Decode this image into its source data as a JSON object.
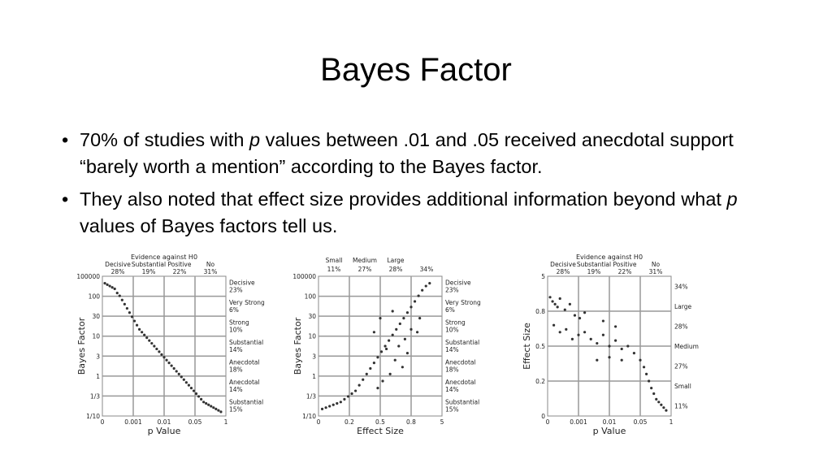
{
  "slide": {
    "title": "Bayes Factor",
    "bullets": [
      {
        "before": "70% of studies with ",
        "italic": "p",
        "after": " values between .01 and .05 received anecdotal support “barely worth a mention” according to the Bayes factor."
      },
      {
        "before": "They also noted that effect size provides additional information beyond what ",
        "italic": "p",
        "after": " values of Bayes factors tell us."
      }
    ]
  },
  "chart_data": [
    {
      "type": "scatter",
      "xlabel": "p Value",
      "ylabel": "Bayes Factor",
      "top_header": "Evidence against H0",
      "top_categories": [
        {
          "name": "Decisive",
          "pct": "28%"
        },
        {
          "name": "Substantial",
          "pct": "19%"
        },
        {
          "name": "Positive",
          "pct": "22%"
        },
        {
          "name": "No",
          "pct": "31%"
        }
      ],
      "x_ticks": [
        "0",
        "0.001",
        "0.01",
        "0.05",
        "1"
      ],
      "y_ticks": [
        "100000",
        "100",
        "30",
        "10",
        "3",
        "1",
        "1/3",
        "1/10"
      ],
      "right_labels": [
        {
          "name": "Decisive",
          "pct": "23%"
        },
        {
          "name": "Very Strong",
          "pct": "6%"
        },
        {
          "name": "Strong",
          "pct": "10%"
        },
        {
          "name": "Substantial",
          "pct": "14%"
        },
        {
          "name": "Anecdotal",
          "pct": "18%"
        },
        {
          "name": "Anecdotal",
          "pct": "14%"
        },
        {
          "name": "Substantial",
          "pct": "15%"
        }
      ],
      "points_desc": "monotone decreasing band",
      "points": [
        [
          0.02,
          0.95
        ],
        [
          0.04,
          0.94
        ],
        [
          0.06,
          0.93
        ],
        [
          0.08,
          0.92
        ],
        [
          0.1,
          0.91
        ],
        [
          0.12,
          0.88
        ],
        [
          0.14,
          0.86
        ],
        [
          0.16,
          0.83
        ],
        [
          0.18,
          0.8
        ],
        [
          0.2,
          0.77
        ],
        [
          0.22,
          0.74
        ],
        [
          0.24,
          0.71
        ],
        [
          0.26,
          0.68
        ],
        [
          0.28,
          0.65
        ],
        [
          0.3,
          0.62
        ],
        [
          0.32,
          0.6
        ],
        [
          0.34,
          0.58
        ],
        [
          0.36,
          0.56
        ],
        [
          0.38,
          0.54
        ],
        [
          0.4,
          0.52
        ],
        [
          0.42,
          0.5
        ],
        [
          0.44,
          0.48
        ],
        [
          0.46,
          0.46
        ],
        [
          0.48,
          0.44
        ],
        [
          0.5,
          0.42
        ],
        [
          0.52,
          0.4
        ],
        [
          0.54,
          0.38
        ],
        [
          0.56,
          0.36
        ],
        [
          0.58,
          0.34
        ],
        [
          0.6,
          0.32
        ],
        [
          0.62,
          0.3
        ],
        [
          0.64,
          0.28
        ],
        [
          0.66,
          0.26
        ],
        [
          0.68,
          0.24
        ],
        [
          0.7,
          0.22
        ],
        [
          0.72,
          0.2
        ],
        [
          0.74,
          0.18
        ],
        [
          0.76,
          0.16
        ],
        [
          0.78,
          0.14
        ],
        [
          0.8,
          0.12
        ],
        [
          0.82,
          0.1
        ],
        [
          0.84,
          0.09
        ],
        [
          0.86,
          0.08
        ],
        [
          0.88,
          0.07
        ],
        [
          0.9,
          0.06
        ],
        [
          0.92,
          0.05
        ],
        [
          0.94,
          0.04
        ],
        [
          0.96,
          0.03
        ]
      ]
    },
    {
      "type": "scatter",
      "xlabel": "Effect Size",
      "ylabel": "Bayes Factor",
      "top_categories": [
        {
          "name": "Small",
          "pct": "11%"
        },
        {
          "name": "Medium",
          "pct": "27%"
        },
        {
          "name": "Large",
          "pct": "28%"
        },
        {
          "name": "",
          "pct": "34%"
        }
      ],
      "x_ticks": [
        "0",
        "0.2",
        "0.5",
        "0.8",
        "5"
      ],
      "y_ticks": [
        "100000",
        "100",
        "30",
        "10",
        "3",
        "1",
        "1/3",
        "1/10"
      ],
      "right_labels": [
        {
          "name": "Decisive",
          "pct": "23%"
        },
        {
          "name": "Very Strong",
          "pct": "6%"
        },
        {
          "name": "Strong",
          "pct": "10%"
        },
        {
          "name": "Substantial",
          "pct": "14%"
        },
        {
          "name": "Anecdotal",
          "pct": "18%"
        },
        {
          "name": "Anecdotal",
          "pct": "14%"
        },
        {
          "name": "Substantial",
          "pct": "15%"
        }
      ],
      "points": [
        [
          0.03,
          0.05
        ],
        [
          0.06,
          0.06
        ],
        [
          0.09,
          0.07
        ],
        [
          0.12,
          0.08
        ],
        [
          0.15,
          0.09
        ],
        [
          0.18,
          0.1
        ],
        [
          0.21,
          0.12
        ],
        [
          0.24,
          0.14
        ],
        [
          0.27,
          0.16
        ],
        [
          0.3,
          0.18
        ],
        [
          0.33,
          0.22
        ],
        [
          0.36,
          0.26
        ],
        [
          0.39,
          0.3
        ],
        [
          0.42,
          0.34
        ],
        [
          0.45,
          0.38
        ],
        [
          0.48,
          0.42
        ],
        [
          0.51,
          0.46
        ],
        [
          0.54,
          0.5
        ],
        [
          0.57,
          0.54
        ],
        [
          0.6,
          0.58
        ],
        [
          0.63,
          0.62
        ],
        [
          0.66,
          0.66
        ],
        [
          0.69,
          0.7
        ],
        [
          0.72,
          0.74
        ],
        [
          0.75,
          0.78
        ],
        [
          0.78,
          0.82
        ],
        [
          0.81,
          0.86
        ],
        [
          0.84,
          0.9
        ],
        [
          0.87,
          0.93
        ],
        [
          0.9,
          0.95
        ],
        [
          0.45,
          0.6
        ],
        [
          0.5,
          0.7
        ],
        [
          0.55,
          0.48
        ],
        [
          0.6,
          0.75
        ],
        [
          0.65,
          0.5
        ],
        [
          0.7,
          0.55
        ],
        [
          0.75,
          0.62
        ],
        [
          0.62,
          0.4
        ],
        [
          0.68,
          0.35
        ],
        [
          0.72,
          0.45
        ],
        [
          0.8,
          0.6
        ],
        [
          0.82,
          0.7
        ],
        [
          0.58,
          0.3
        ],
        [
          0.52,
          0.25
        ],
        [
          0.48,
          0.2
        ]
      ]
    },
    {
      "type": "scatter",
      "xlabel": "p Value",
      "ylabel": "Effect Size",
      "top_header": "Evidence against H0",
      "top_categories": [
        {
          "name": "Decisive",
          "pct": "28%"
        },
        {
          "name": "Substantial",
          "pct": "19%"
        },
        {
          "name": "Positive",
          "pct": "22%"
        },
        {
          "name": "No",
          "pct": "31%"
        }
      ],
      "x_ticks": [
        "0",
        "0.001",
        "0.01",
        "0.05",
        "1"
      ],
      "y_ticks": [
        "5",
        "0.8",
        "0.5",
        "0.2",
        "0"
      ],
      "right_labels": [
        {
          "name": "",
          "pct": "34%"
        },
        {
          "name": "Large",
          "pct": ""
        },
        {
          "name": "",
          "pct": "28%"
        },
        {
          "name": "Medium",
          "pct": ""
        },
        {
          "name": "",
          "pct": "27%"
        },
        {
          "name": "Small",
          "pct": ""
        },
        {
          "name": "",
          "pct": "11%"
        }
      ],
      "points": [
        [
          0.02,
          0.85
        ],
        [
          0.04,
          0.82
        ],
        [
          0.06,
          0.8
        ],
        [
          0.08,
          0.78
        ],
        [
          0.1,
          0.84
        ],
        [
          0.14,
          0.76
        ],
        [
          0.18,
          0.8
        ],
        [
          0.22,
          0.72
        ],
        [
          0.26,
          0.7
        ],
        [
          0.3,
          0.74
        ],
        [
          0.05,
          0.65
        ],
        [
          0.1,
          0.6
        ],
        [
          0.15,
          0.62
        ],
        [
          0.2,
          0.55
        ],
        [
          0.25,
          0.58
        ],
        [
          0.3,
          0.6
        ],
        [
          0.35,
          0.55
        ],
        [
          0.4,
          0.52
        ],
        [
          0.45,
          0.58
        ],
        [
          0.5,
          0.5
        ],
        [
          0.55,
          0.54
        ],
        [
          0.6,
          0.48
        ],
        [
          0.65,
          0.5
        ],
        [
          0.7,
          0.45
        ],
        [
          0.75,
          0.4
        ],
        [
          0.78,
          0.35
        ],
        [
          0.8,
          0.3
        ],
        [
          0.82,
          0.25
        ],
        [
          0.84,
          0.2
        ],
        [
          0.86,
          0.16
        ],
        [
          0.88,
          0.12
        ],
        [
          0.9,
          0.1
        ],
        [
          0.92,
          0.08
        ],
        [
          0.94,
          0.06
        ],
        [
          0.96,
          0.04
        ],
        [
          0.4,
          0.4
        ],
        [
          0.5,
          0.42
        ],
        [
          0.6,
          0.4
        ],
        [
          0.45,
          0.68
        ],
        [
          0.55,
          0.64
        ]
      ]
    }
  ]
}
